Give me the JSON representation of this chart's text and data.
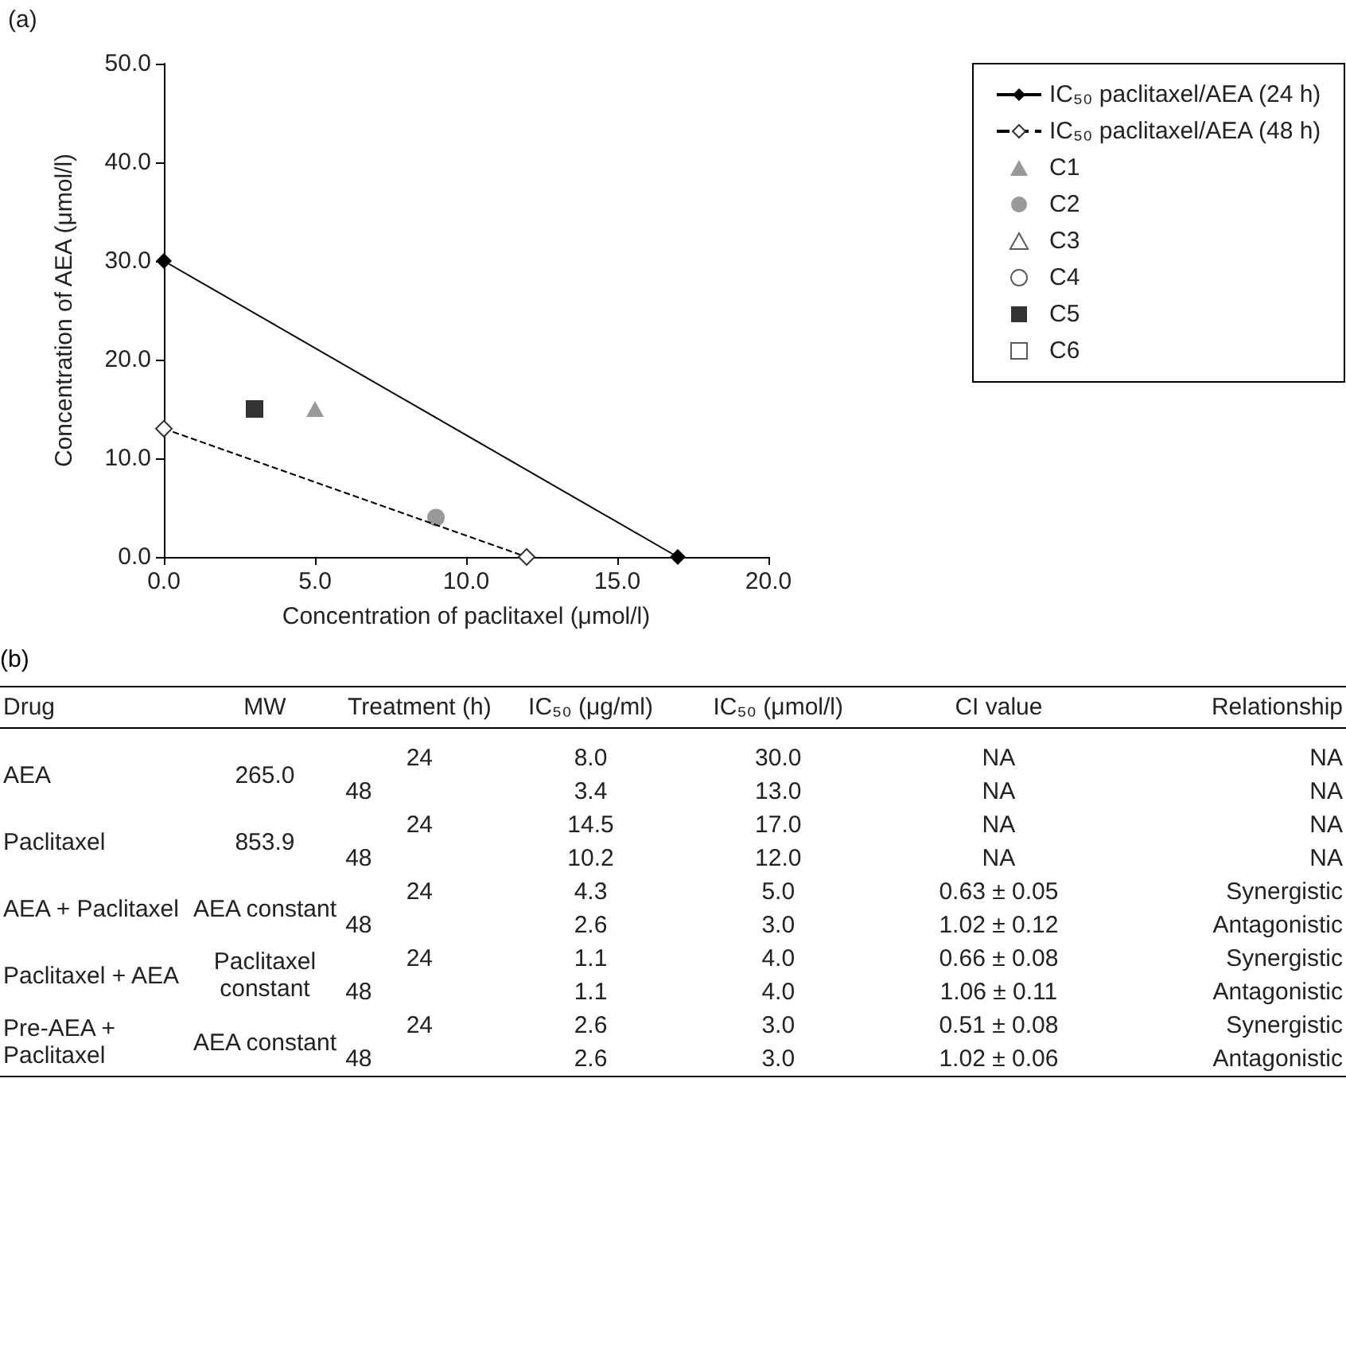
{
  "chart_data": [
    {
      "type": "line",
      "title": "(a)",
      "xlabel": "Concentration of paclitaxel (μmol/l)",
      "ylabel": "Concentration of AEA (μmol/l)",
      "xlim": [
        0,
        20
      ],
      "ylim": [
        0,
        50
      ],
      "xticks": [
        {
          "value": 0,
          "label": "0.0"
        },
        {
          "value": 5,
          "label": "5.0"
        },
        {
          "value": 10,
          "label": "10.0"
        },
        {
          "value": 15,
          "label": "15.0"
        },
        {
          "value": 20,
          "label": "20.0"
        }
      ],
      "yticks": [
        {
          "value": 0,
          "label": "0.0"
        },
        {
          "value": 10,
          "label": "10.0"
        },
        {
          "value": 20,
          "label": "20.0"
        },
        {
          "value": 30,
          "label": "30.0"
        },
        {
          "value": 40,
          "label": "40.0"
        },
        {
          "value": 50,
          "label": "50.0"
        }
      ],
      "grid": false,
      "legend": "right",
      "series": [
        {
          "name": "IC₅₀ paclitaxel/AEA (24 h)",
          "type": "line",
          "color": "#000000",
          "marker": "diamond",
          "line_style": "solid",
          "x": [
            0,
            17
          ],
          "values": [
            30,
            0
          ]
        },
        {
          "name": "IC₅₀ paclitaxel/AEA (48 h)",
          "type": "line",
          "color": "#000000",
          "marker": "diamond",
          "colors": [
            "#ffffff",
            "#ffffff"
          ],
          "line_style": "dashed",
          "x": [
            0,
            12
          ],
          "values": [
            13,
            0
          ]
        },
        {
          "name": "C1",
          "type": "scatter",
          "color": "#808080",
          "marker": "triangle",
          "x": [
            5
          ],
          "values": [
            15
          ]
        },
        {
          "name": "C2",
          "type": "scatter",
          "color": "#808080",
          "marker": "circle",
          "x": [
            9
          ],
          "values": [
            4
          ]
        },
        {
          "name": "C3",
          "type": "scatter",
          "color": "#ffffff",
          "marker": "triangle",
          "x": [
            null
          ],
          "values": [
            null
          ]
        },
        {
          "name": "C4",
          "type": "scatter",
          "color": "#ffffff",
          "marker": "circle",
          "x": [
            null
          ],
          "values": [
            null
          ]
        },
        {
          "name": "C5",
          "type": "scatter",
          "color": "#000000",
          "marker": "square",
          "x": [
            3
          ],
          "values": [
            15
          ]
        },
        {
          "name": "C6",
          "type": "scatter",
          "color": "#ffffff",
          "marker": "square",
          "x": [
            null
          ],
          "values": [
            null
          ]
        }
      ]
    },
    {
      "type": "other",
      "title": "(b)",
      "annotations": [
        "Drug",
        "MW",
        "Treatment (h)",
        "IC₅₀ (μg/ml)",
        "IC₅₀ (μmol/l)",
        "CI value",
        "Relationship",
        "AEA",
        "265.0",
        "24",
        "8.0",
        "30.0",
        "NA",
        "NA",
        "48",
        "3.4",
        "13.0",
        "NA",
        "NA",
        "Paclitaxel",
        "853.9",
        "24",
        "14.5",
        "17.0",
        "NA",
        "NA",
        "48",
        "10.2",
        "12.0",
        "NA",
        "NA",
        "AEA + Paclitaxel",
        "AEA constant",
        "24",
        "4.3",
        "5.0",
        "0.63 ± 0.05",
        "Synergistic",
        "48",
        "2.6",
        "3.0",
        "1.02 ± 0.12",
        "Antagonistic",
        "Paclitaxel + AEA",
        "Paclitaxel constant",
        "24",
        "1.1",
        "4.0",
        "0.66 ± 0.08",
        "Synergistic",
        "48",
        "1.1",
        "4.0",
        "1.06 ± 0.11",
        "Antagonistic",
        "Pre-AEA + Paclitaxel",
        "AEA constant",
        "24",
        "2.6",
        "3.0",
        "0.51 ± 0.08",
        "Synergistic",
        "48",
        "2.6",
        "3.0",
        "1.02 ± 0.06",
        "Antagonistic"
      ]
    }
  ]
}
